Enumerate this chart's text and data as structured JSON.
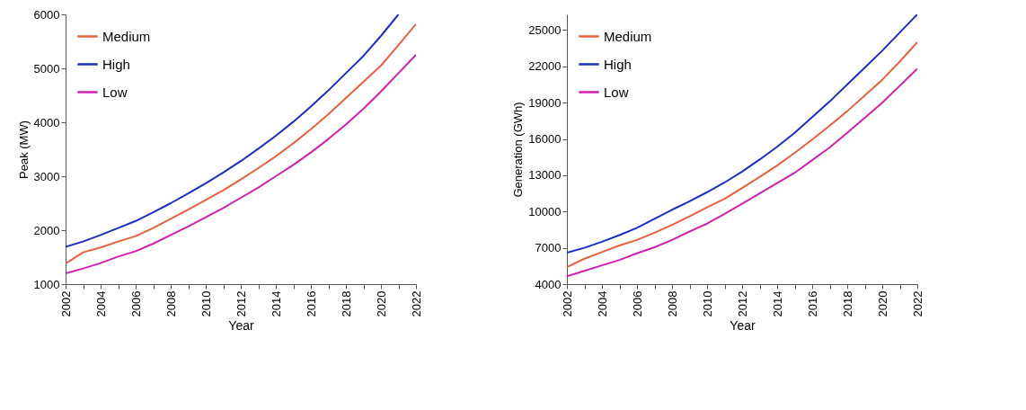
{
  "chart_data": [
    {
      "type": "line",
      "xlabel": "Year",
      "ylabel": "Peak (MW)",
      "x": [
        2002,
        2003,
        2004,
        2005,
        2006,
        2007,
        2008,
        2009,
        2010,
        2011,
        2012,
        2013,
        2014,
        2015,
        2016,
        2017,
        2018,
        2019,
        2020,
        2021,
        2022
      ],
      "series": [
        {
          "name": "Medium",
          "color": "#e8603c",
          "values": [
            1380,
            1590,
            1680,
            1790,
            1890,
            2040,
            2210,
            2380,
            2560,
            2740,
            2940,
            3150,
            3370,
            3610,
            3870,
            4150,
            4450,
            4750,
            5050,
            5430,
            5820
          ]
        },
        {
          "name": "High",
          "color": "#1a2fc0",
          "values": [
            1690,
            1790,
            1910,
            2040,
            2170,
            2330,
            2500,
            2680,
            2870,
            3070,
            3280,
            3510,
            3750,
            4010,
            4290,
            4590,
            4910,
            5230,
            5600,
            6000,
            null
          ]
        },
        {
          "name": "Low",
          "color": "#d020b0",
          "values": [
            1200,
            1290,
            1390,
            1510,
            1610,
            1750,
            1910,
            2070,
            2240,
            2410,
            2600,
            2790,
            3000,
            3210,
            3440,
            3690,
            3960,
            4250,
            4570,
            4910,
            5250
          ]
        }
      ],
      "xlim": [
        2002,
        2022
      ],
      "xticks": [
        2002,
        {
          "value": 2003,
          "label": null
        },
        2004,
        {
          "value": 2005,
          "label": null
        },
        2006,
        {
          "value": 2007,
          "label": null
        },
        2008,
        {
          "value": 2009,
          "label": null
        },
        2010,
        {
          "value": 2011,
          "label": null
        },
        2012,
        {
          "value": 2013,
          "label": null
        },
        2014,
        {
          "value": 2015,
          "label": null
        },
        2016,
        {
          "value": 2017,
          "label": null
        },
        2018,
        {
          "value": 2019,
          "label": null
        },
        2020,
        {
          "value": 2021,
          "label": null
        },
        2022
      ],
      "ylim": [
        1000,
        6000
      ],
      "yticks": [
        1000,
        2000,
        3000,
        4000,
        5000,
        6000
      ],
      "legend": "top left",
      "grid": false
    },
    {
      "type": "line",
      "xlabel": "Year",
      "ylabel": "Generation (GWh)",
      "x": [
        2002,
        2003,
        2004,
        2005,
        2006,
        2007,
        2008,
        2009,
        2010,
        2011,
        2012,
        2013,
        2014,
        2015,
        2016,
        2017,
        2018,
        2019,
        2020,
        2021,
        2022
      ],
      "series": [
        {
          "name": "Medium",
          "color": "#e8603c",
          "values": [
            5400,
            6100,
            6650,
            7200,
            7650,
            8250,
            8900,
            9600,
            10350,
            11050,
            11950,
            12850,
            13800,
            14850,
            15950,
            17100,
            18300,
            19600,
            20900,
            22400,
            24000
          ]
        },
        {
          "name": "High",
          "color": "#1a2fc0",
          "values": [
            6600,
            7000,
            7500,
            8050,
            8650,
            9400,
            10150,
            10850,
            11600,
            12400,
            13300,
            14300,
            15350,
            16500,
            17800,
            19100,
            20500,
            21900,
            23300,
            24800,
            26300
          ]
        },
        {
          "name": "Low",
          "color": "#d020b0",
          "values": [
            4650,
            5100,
            5550,
            6000,
            6550,
            7050,
            7650,
            8350,
            9000,
            9800,
            10650,
            11500,
            12350,
            13200,
            14250,
            15300,
            16500,
            17750,
            19000,
            20400,
            21800
          ]
        }
      ],
      "xlim": [
        2002,
        2022
      ],
      "xticks": [
        2002,
        {
          "value": 2003,
          "label": null
        },
        2004,
        {
          "value": 2005,
          "label": null
        },
        2006,
        {
          "value": 2007,
          "label": null
        },
        2008,
        {
          "value": 2009,
          "label": null
        },
        2010,
        {
          "value": 2011,
          "label": null
        },
        2012,
        {
          "value": 2013,
          "label": null
        },
        2014,
        {
          "value": 2015,
          "label": null
        },
        2016,
        {
          "value": 2017,
          "label": null
        },
        2018,
        {
          "value": 2019,
          "label": null
        },
        2020,
        {
          "value": 2021,
          "label": null
        },
        2022
      ],
      "ylim": [
        4000,
        26300
      ],
      "yticks": [
        4000,
        7000,
        10000,
        13000,
        16000,
        19000,
        22000,
        25000
      ],
      "legend": "top left",
      "grid": false
    }
  ]
}
